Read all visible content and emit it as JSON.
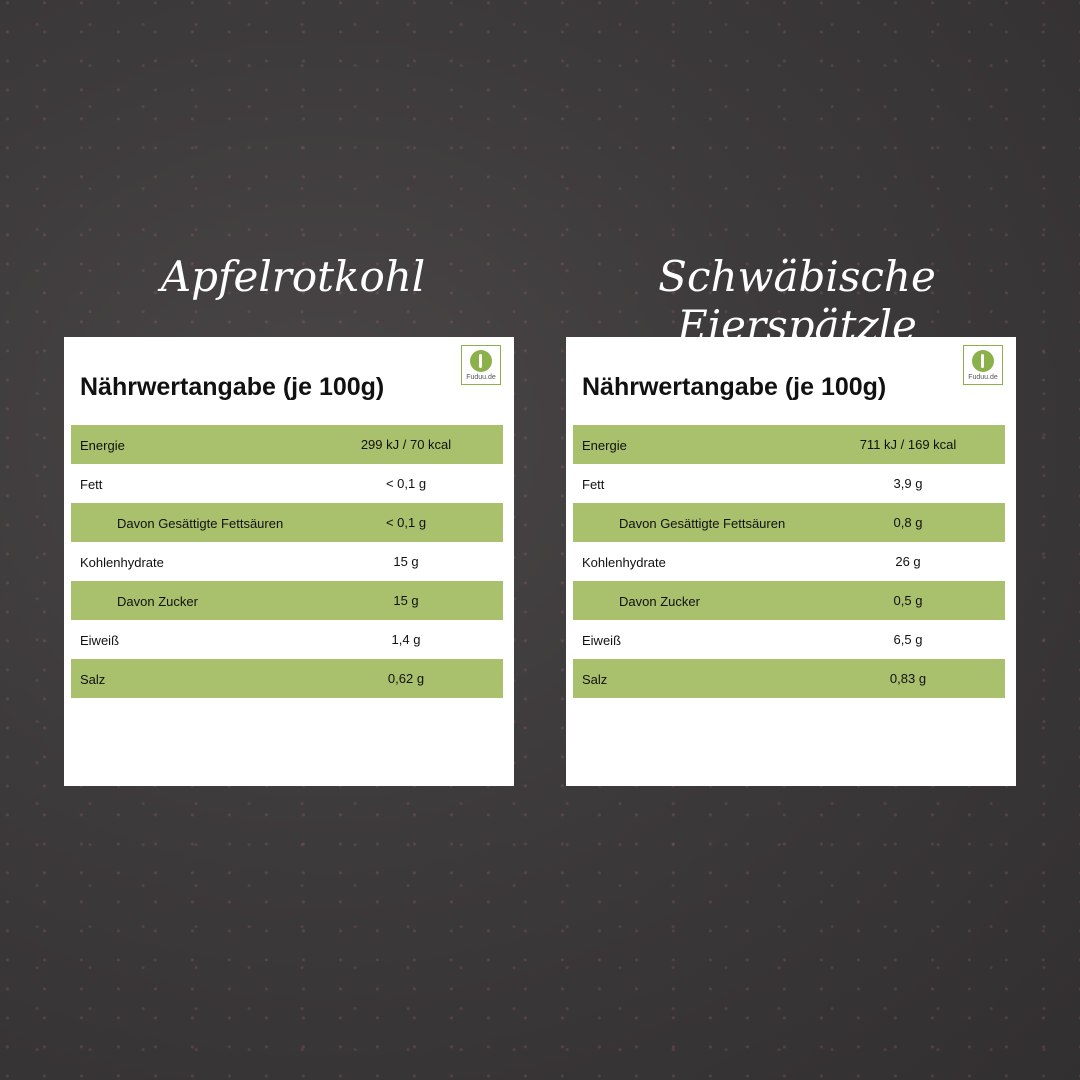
{
  "cards": [
    {
      "dish": "Apfelrotkohl",
      "title": "Nährwertangabe (je 100g)",
      "logo": "Fuduu.de",
      "rows": [
        {
          "label": "Energie",
          "value": "299 kJ / 70 kcal"
        },
        {
          "label": "Fett",
          "value": "< 0,1 g"
        },
        {
          "label": "Davon Gesättigte Fettsäuren",
          "value": "< 0,1 g"
        },
        {
          "label": "Kohlenhydrate",
          "value": "15 g"
        },
        {
          "label": "Davon Zucker",
          "value": "15 g"
        },
        {
          "label": "Eiweiß",
          "value": "1,4 g"
        },
        {
          "label": "Salz",
          "value": "0,62 g"
        }
      ]
    },
    {
      "dish": "Schwäbische Eierspätzle",
      "title": "Nährwertangabe (je 100g)",
      "logo": "Fuduu.de",
      "rows": [
        {
          "label": "Energie",
          "value": "711 kJ / 169 kcal"
        },
        {
          "label": "Fett",
          "value": "3,9 g"
        },
        {
          "label": "Davon Gesättigte Fettsäuren",
          "value": "0,8 g"
        },
        {
          "label": "Kohlenhydrate",
          "value": "26 g"
        },
        {
          "label": "Davon Zucker",
          "value": "0,5 g"
        },
        {
          "label": "Eiweiß",
          "value": "6,5 g"
        },
        {
          "label": "Salz",
          "value": "0,83 g"
        }
      ]
    }
  ],
  "colors": {
    "row_highlight": "#a9c06d",
    "background": "#3d3a3b"
  }
}
